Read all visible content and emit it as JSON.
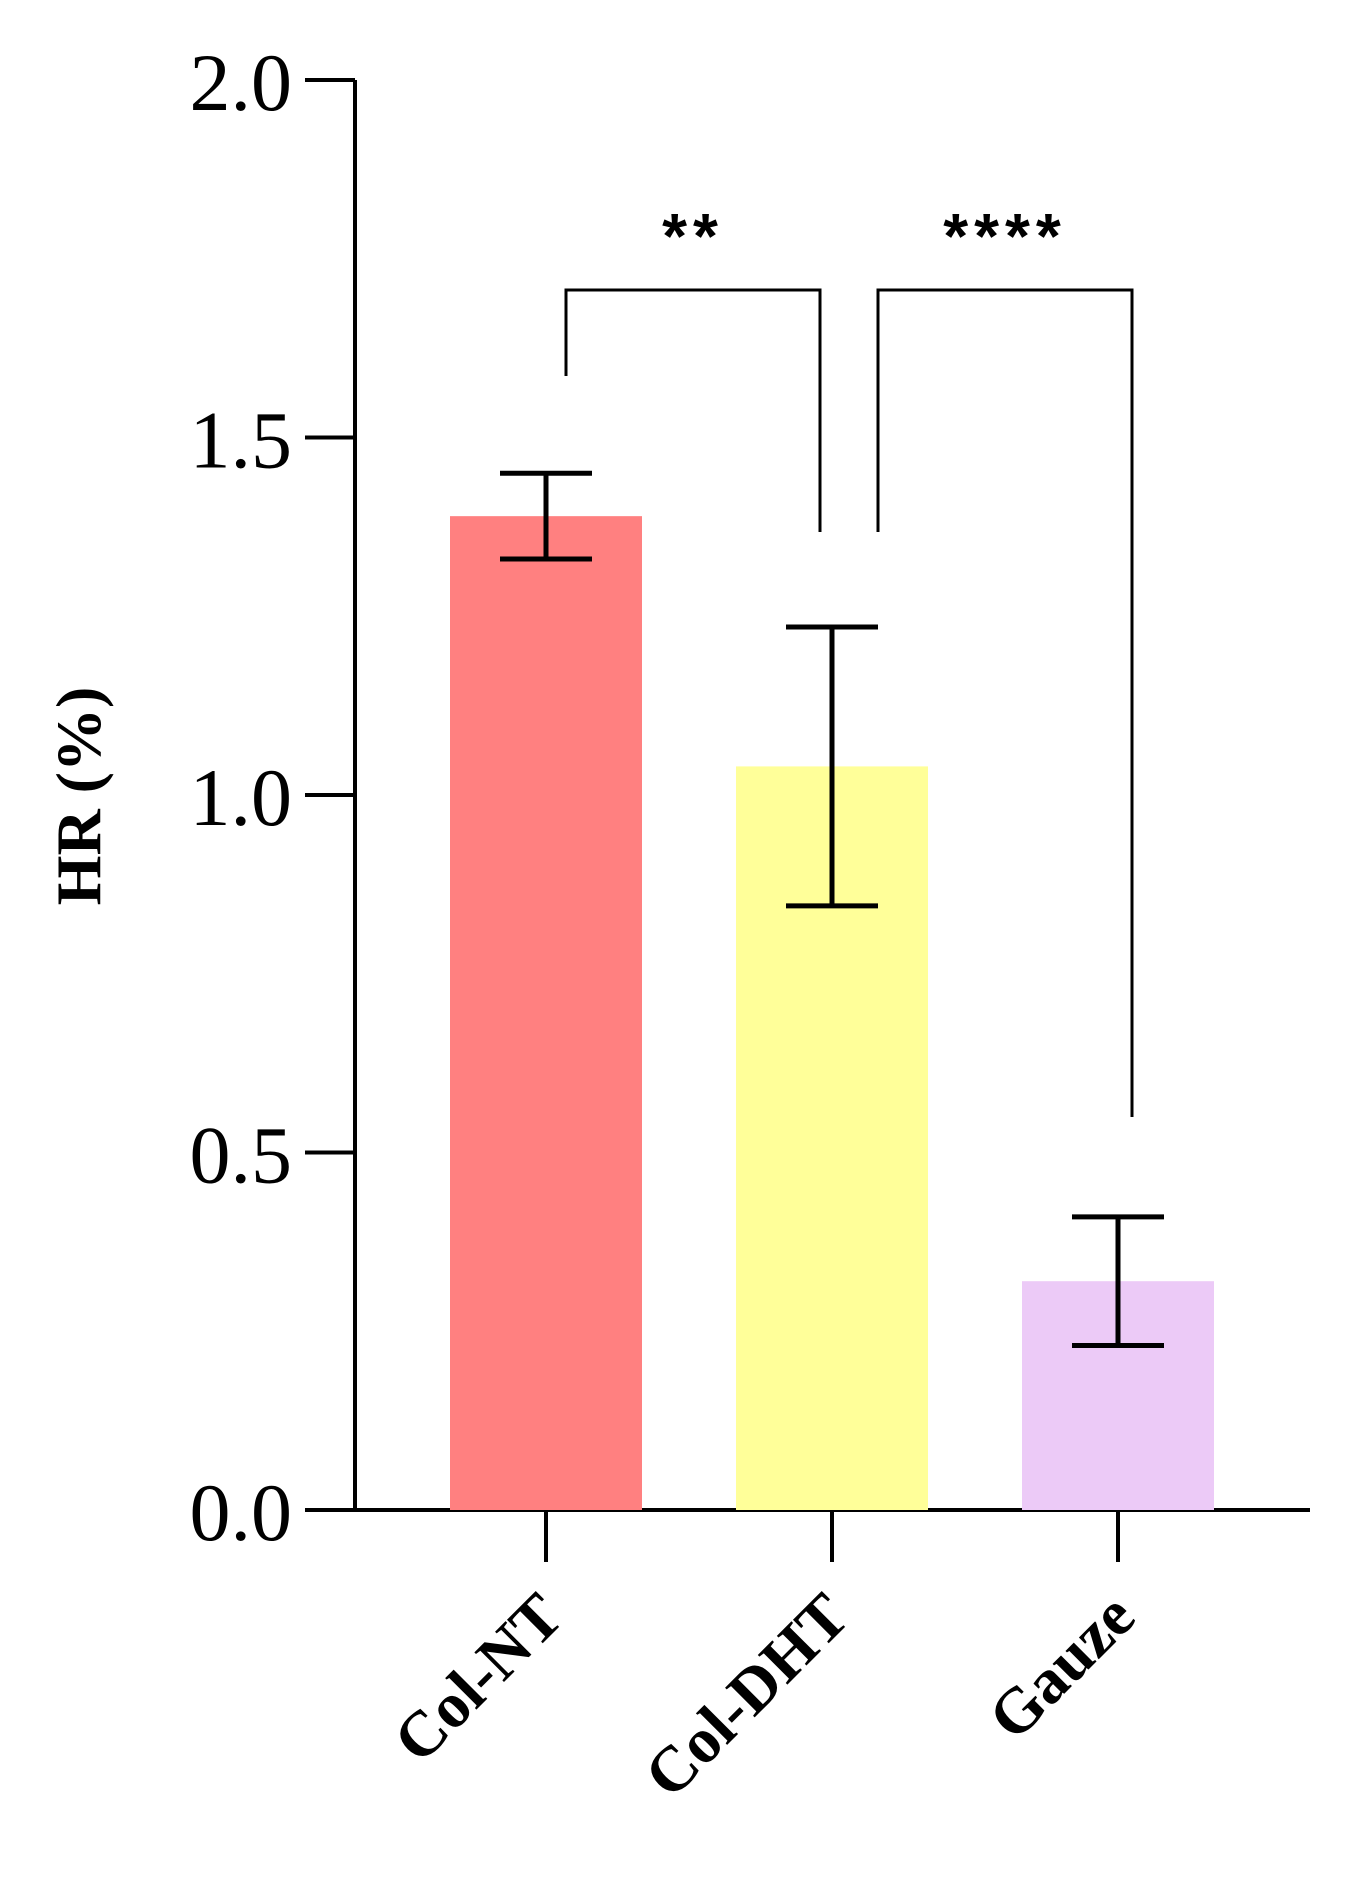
{
  "chart_data": {
    "type": "bar",
    "title": "",
    "xlabel": "",
    "ylabel": "HR (%)",
    "ylim": [
      0,
      2.0
    ],
    "yticks": [
      "0.0",
      "0.5",
      "1.0",
      "1.5",
      "2.0"
    ],
    "ytick_values": [
      0,
      0.5,
      1.0,
      1.5,
      2.0
    ],
    "grid": false,
    "categories": [
      "Col-NT",
      "Col-DHT",
      "Gauze"
    ],
    "values": [
      1.39,
      1.04,
      0.32
    ],
    "error": [
      0.06,
      0.195,
      0.09
    ],
    "colors": [
      "#ff8080",
      "#ffff99",
      "#eccaf7"
    ],
    "significance": [
      {
        "from": 0,
        "to": 1,
        "label": "**"
      },
      {
        "from": 1,
        "to": 2,
        "label": "****"
      }
    ]
  }
}
